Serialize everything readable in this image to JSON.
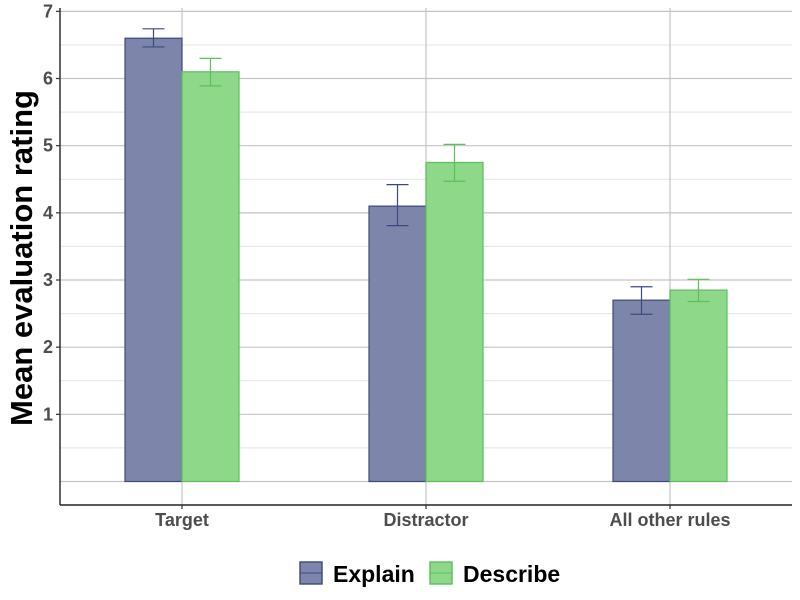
{
  "chart_data": {
    "type": "bar",
    "title": "",
    "xlabel": "",
    "ylabel": "Mean evaluation rating",
    "categories": [
      "Target",
      "Distractor",
      "All other rules"
    ],
    "series": [
      {
        "name": "Explain",
        "values": [
          6.6,
          4.1,
          2.7
        ],
        "error_low": [
          6.47,
          3.81,
          2.49
        ],
        "error_high": [
          6.74,
          4.42,
          2.9
        ],
        "color": "#7d86aa",
        "edge_color": "#3a4a80"
      },
      {
        "name": "Describe",
        "values": [
          6.1,
          4.75,
          2.85
        ],
        "error_low": [
          5.89,
          4.47,
          2.68
        ],
        "error_high": [
          6.3,
          5.02,
          3.01
        ],
        "color": "#8ed88a",
        "edge_color": "#5cbf5c"
      }
    ],
    "yticks": [
      "1",
      "2",
      "3",
      "4",
      "5",
      "6",
      "7"
    ],
    "ylim": [
      -0.35,
      7.05
    ],
    "grid": true,
    "legend_position": "bottom"
  }
}
